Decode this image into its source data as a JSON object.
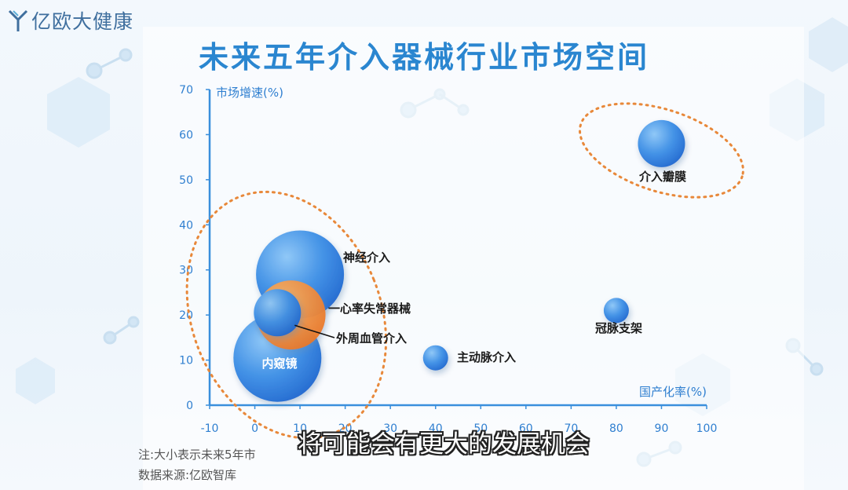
{
  "header": {
    "logo_text": "亿欧大健康"
  },
  "title": "未来五年介入器械行业市场空间",
  "chart_data": {
    "type": "scatter",
    "xlabel": "国产化率(%)",
    "ylabel": "市场增速(%)",
    "xlim": [
      -10,
      100
    ],
    "ylim": [
      0,
      70
    ],
    "xticks": [
      -10,
      0,
      10,
      20,
      30,
      40,
      50,
      60,
      70,
      80,
      90,
      100
    ],
    "yticks": [
      0,
      10,
      20,
      30,
      40,
      50,
      60,
      70
    ],
    "grid": false,
    "points": [
      {
        "label": "神经介入",
        "x": 10,
        "y": 29,
        "size": "large",
        "color": "#2f7fe0"
      },
      {
        "label": "内窥镜",
        "x": 5,
        "y": 10.5,
        "size": "large",
        "color": "#3b8ae4"
      },
      {
        "label": "一心率失常器械",
        "x": 8,
        "y": 20,
        "size": "medium",
        "color": "#ef8a2a"
      },
      {
        "label": "外周血管介入",
        "x": 5,
        "y": 20.5,
        "size": "small",
        "color": "#3b84dd"
      },
      {
        "label": "主动脉介入",
        "x": 40,
        "y": 10.5,
        "size": "tiny",
        "color": "#2f7fe0"
      },
      {
        "label": "冠脉支架",
        "x": 80,
        "y": 21,
        "size": "tiny",
        "color": "#2f7fe0"
      },
      {
        "label": "介入瓣膜",
        "x": 90,
        "y": 58,
        "size": "small",
        "color": "#2f7fe0"
      }
    ]
  },
  "notes": {
    "note": "注:大小表示未来5年市",
    "source": "数据来源:亿欧智库"
  },
  "subtitle": "将可能会有更大的发展机会"
}
